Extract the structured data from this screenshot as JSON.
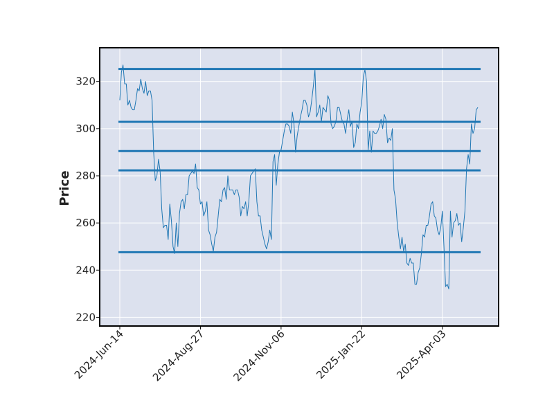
{
  "chart_data": {
    "type": "line",
    "title": "",
    "xlabel": "",
    "ylabel": "Price",
    "ylim": [
      216.3,
      334.3
    ],
    "y_ticks": [
      220,
      240,
      260,
      280,
      300,
      320
    ],
    "x_ticks": [
      "2024-Jun-14",
      "2024-Aug-27",
      "2024-Nov-06",
      "2025-Jan-22",
      "2025-Apr-03"
    ],
    "x_tick_index": [
      0,
      50,
      100,
      150,
      200
    ],
    "grid": true,
    "background_color": "#dce1ee",
    "line_color": "#1f77b4",
    "level_lines": [
      325.3,
      302.9,
      290.5,
      282.3,
      247.6
    ],
    "series": [
      {
        "values": [
          312,
          324,
          327,
          319,
          319,
          310,
          312,
          309,
          308,
          308,
          312,
          317,
          316,
          321,
          317,
          315,
          320,
          314,
          316,
          316,
          312,
          290,
          278,
          280,
          287,
          282,
          266,
          258,
          259,
          259,
          253,
          268,
          261,
          250,
          247,
          260,
          250,
          264,
          269,
          270,
          266,
          272,
          272,
          280,
          281,
          282,
          281,
          285,
          275,
          274,
          268,
          269,
          263,
          265,
          269,
          257,
          255,
          251,
          248,
          254,
          256,
          263,
          270,
          269,
          274,
          275,
          270,
          280,
          274,
          274,
          274,
          272,
          274,
          274,
          271,
          263,
          267,
          266,
          269,
          263,
          269,
          280,
          281,
          282,
          283,
          269,
          263,
          263,
          257,
          254,
          251,
          249,
          252,
          257,
          253,
          286,
          289,
          276,
          285,
          290,
          291,
          295,
          299,
          302,
          302,
          301,
          298,
          307,
          302,
          290,
          297,
          301,
          305,
          308,
          312,
          312,
          310,
          305,
          307,
          312,
          318,
          325,
          305,
          307,
          310,
          303,
          309,
          308,
          307,
          314,
          312,
          302,
          300,
          301,
          303,
          309,
          309,
          306,
          303,
          302,
          298,
          304,
          308,
          301,
          303,
          292,
          294,
          302,
          300,
          307,
          311,
          322,
          325,
          320,
          291,
          299,
          290,
          299,
          298,
          298,
          299,
          301,
          304,
          300,
          306,
          304,
          294,
          296,
          295,
          300,
          274,
          270,
          260,
          254,
          249,
          254,
          248,
          251,
          243,
          242,
          245,
          243,
          243,
          234,
          234,
          239,
          241,
          247,
          255,
          254,
          259,
          259,
          263,
          268,
          269,
          263,
          262,
          257,
          255,
          258,
          265,
          250,
          233,
          234,
          232,
          265,
          254,
          260,
          261,
          264,
          259,
          260,
          252,
          258,
          265,
          283,
          289,
          285,
          302,
          298,
          300,
          308,
          309
        ]
      }
    ]
  }
}
